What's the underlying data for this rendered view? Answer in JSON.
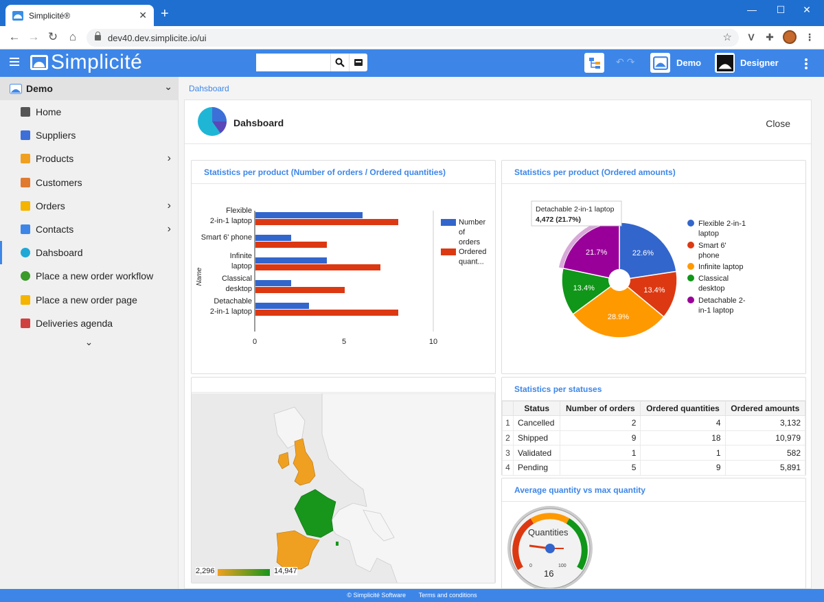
{
  "browser": {
    "tab_title": "Simplicité®",
    "url": "dev40.dev.simplicite.io/ui"
  },
  "header": {
    "logo_text": "Simplicité",
    "search_placeholder": "",
    "scope_label": "Demo",
    "user_label": "Designer"
  },
  "sidebar": {
    "group": "Demo",
    "items": [
      {
        "label": "Home",
        "icon": "home-icon",
        "color": "#555555"
      },
      {
        "label": "Suppliers",
        "icon": "supplier-icon",
        "color": "#3d6fd8"
      },
      {
        "label": "Products",
        "icon": "product-icon",
        "color": "#f0a020"
      },
      {
        "label": "Customers",
        "icon": "customer-icon",
        "color": "#e07a30"
      },
      {
        "label": "Orders",
        "icon": "order-icon",
        "color": "#f4b400"
      },
      {
        "label": "Contacts",
        "icon": "contact-icon",
        "color": "#3d86e8"
      },
      {
        "label": "Dahsboard",
        "icon": "dashboard-icon",
        "color": "#1fa8d6"
      },
      {
        "label": "Place a new order workflow",
        "icon": "workflow-icon",
        "color": "#3a9a2a"
      },
      {
        "label": "Place a new order page",
        "icon": "order-page-icon",
        "color": "#f4b400"
      },
      {
        "label": "Deliveries agenda",
        "icon": "calendar-icon",
        "color": "#d04040"
      }
    ]
  },
  "breadcrumb": "Dahsboard",
  "dashboard": {
    "title": "Dahsboard",
    "close_label": "Close",
    "bar_card_title": "Statistics per product (Number of orders / Ordered quantities)",
    "pie_card_title": "Statistics per product (Ordered amounts)",
    "status_card_title": "Statistics per statuses",
    "gauge_card_title": "Average quantity vs max quantity",
    "bar_legend": [
      "Number of orders",
      "Ordered quant..."
    ],
    "bar_axis_label": "Name",
    "pie_tooltip_name": "Detachable 2-in-1 laptop",
    "pie_tooltip_value": "4,472 (21.7%)",
    "pie_legend": [
      "Flexible 2-in-1 laptop",
      "Smart 6' phone",
      "Infinite laptop",
      "Classical desktop",
      "Detachable 2-in-1 laptop"
    ],
    "map_min": "2,296",
    "map_max": "14,947",
    "gauge_label": "Quantities",
    "gauge_value": "16",
    "gauge_min_label": "0",
    "gauge_max_label": "100"
  },
  "status_table": {
    "headers": [
      "Status",
      "Number of orders",
      "Ordered quantities",
      "Ordered amounts"
    ],
    "rows": [
      [
        "1",
        "Cancelled",
        "2",
        "4",
        "3,132"
      ],
      [
        "2",
        "Shipped",
        "9",
        "18",
        "10,979"
      ],
      [
        "3",
        "Validated",
        "1",
        "1",
        "582"
      ],
      [
        "4",
        "Pending",
        "5",
        "9",
        "5,891"
      ]
    ]
  },
  "colors": {
    "brand": "#3d86e8",
    "series_blue": "#3366cc",
    "series_red": "#dc3912",
    "series_orange": "#ff9900",
    "series_green": "#109618",
    "series_purple": "#990099"
  },
  "footer": {
    "copyright": "© Simplicité Software",
    "terms": "Terms and conditions"
  },
  "chart_data": [
    {
      "type": "bar",
      "orientation": "horizontal",
      "title": "Statistics per product (Number of orders / Ordered quantities)",
      "ylabel": "Name",
      "categories": [
        "Flexible 2-in-1 laptop",
        "Smart 6' phone",
        "Infinite laptop",
        "Classical desktop",
        "Detachable 2-in-1 laptop"
      ],
      "series": [
        {
          "name": "Number of orders",
          "values": [
            6,
            2,
            4,
            2,
            3
          ]
        },
        {
          "name": "Ordered quant...",
          "values": [
            8,
            4,
            7,
            5,
            8
          ]
        }
      ],
      "xlim": [
        0,
        10
      ],
      "xticks": [
        "0",
        "5",
        "10"
      ],
      "legend": "right"
    },
    {
      "type": "pie",
      "title": "Statistics per product (Ordered amounts)",
      "categories": [
        "Flexible 2-in-1 laptop",
        "Smart 6' phone",
        "Infinite laptop",
        "Classical desktop",
        "Detachable 2-in-1 laptop"
      ],
      "values": [
        22.6,
        13.4,
        28.9,
        13.4,
        21.7
      ],
      "labels": [
        "22.6%",
        "13.4%",
        "28.9%",
        "13.4%",
        "21.7%"
      ],
      "donut": true,
      "legend": "right"
    }
  ]
}
